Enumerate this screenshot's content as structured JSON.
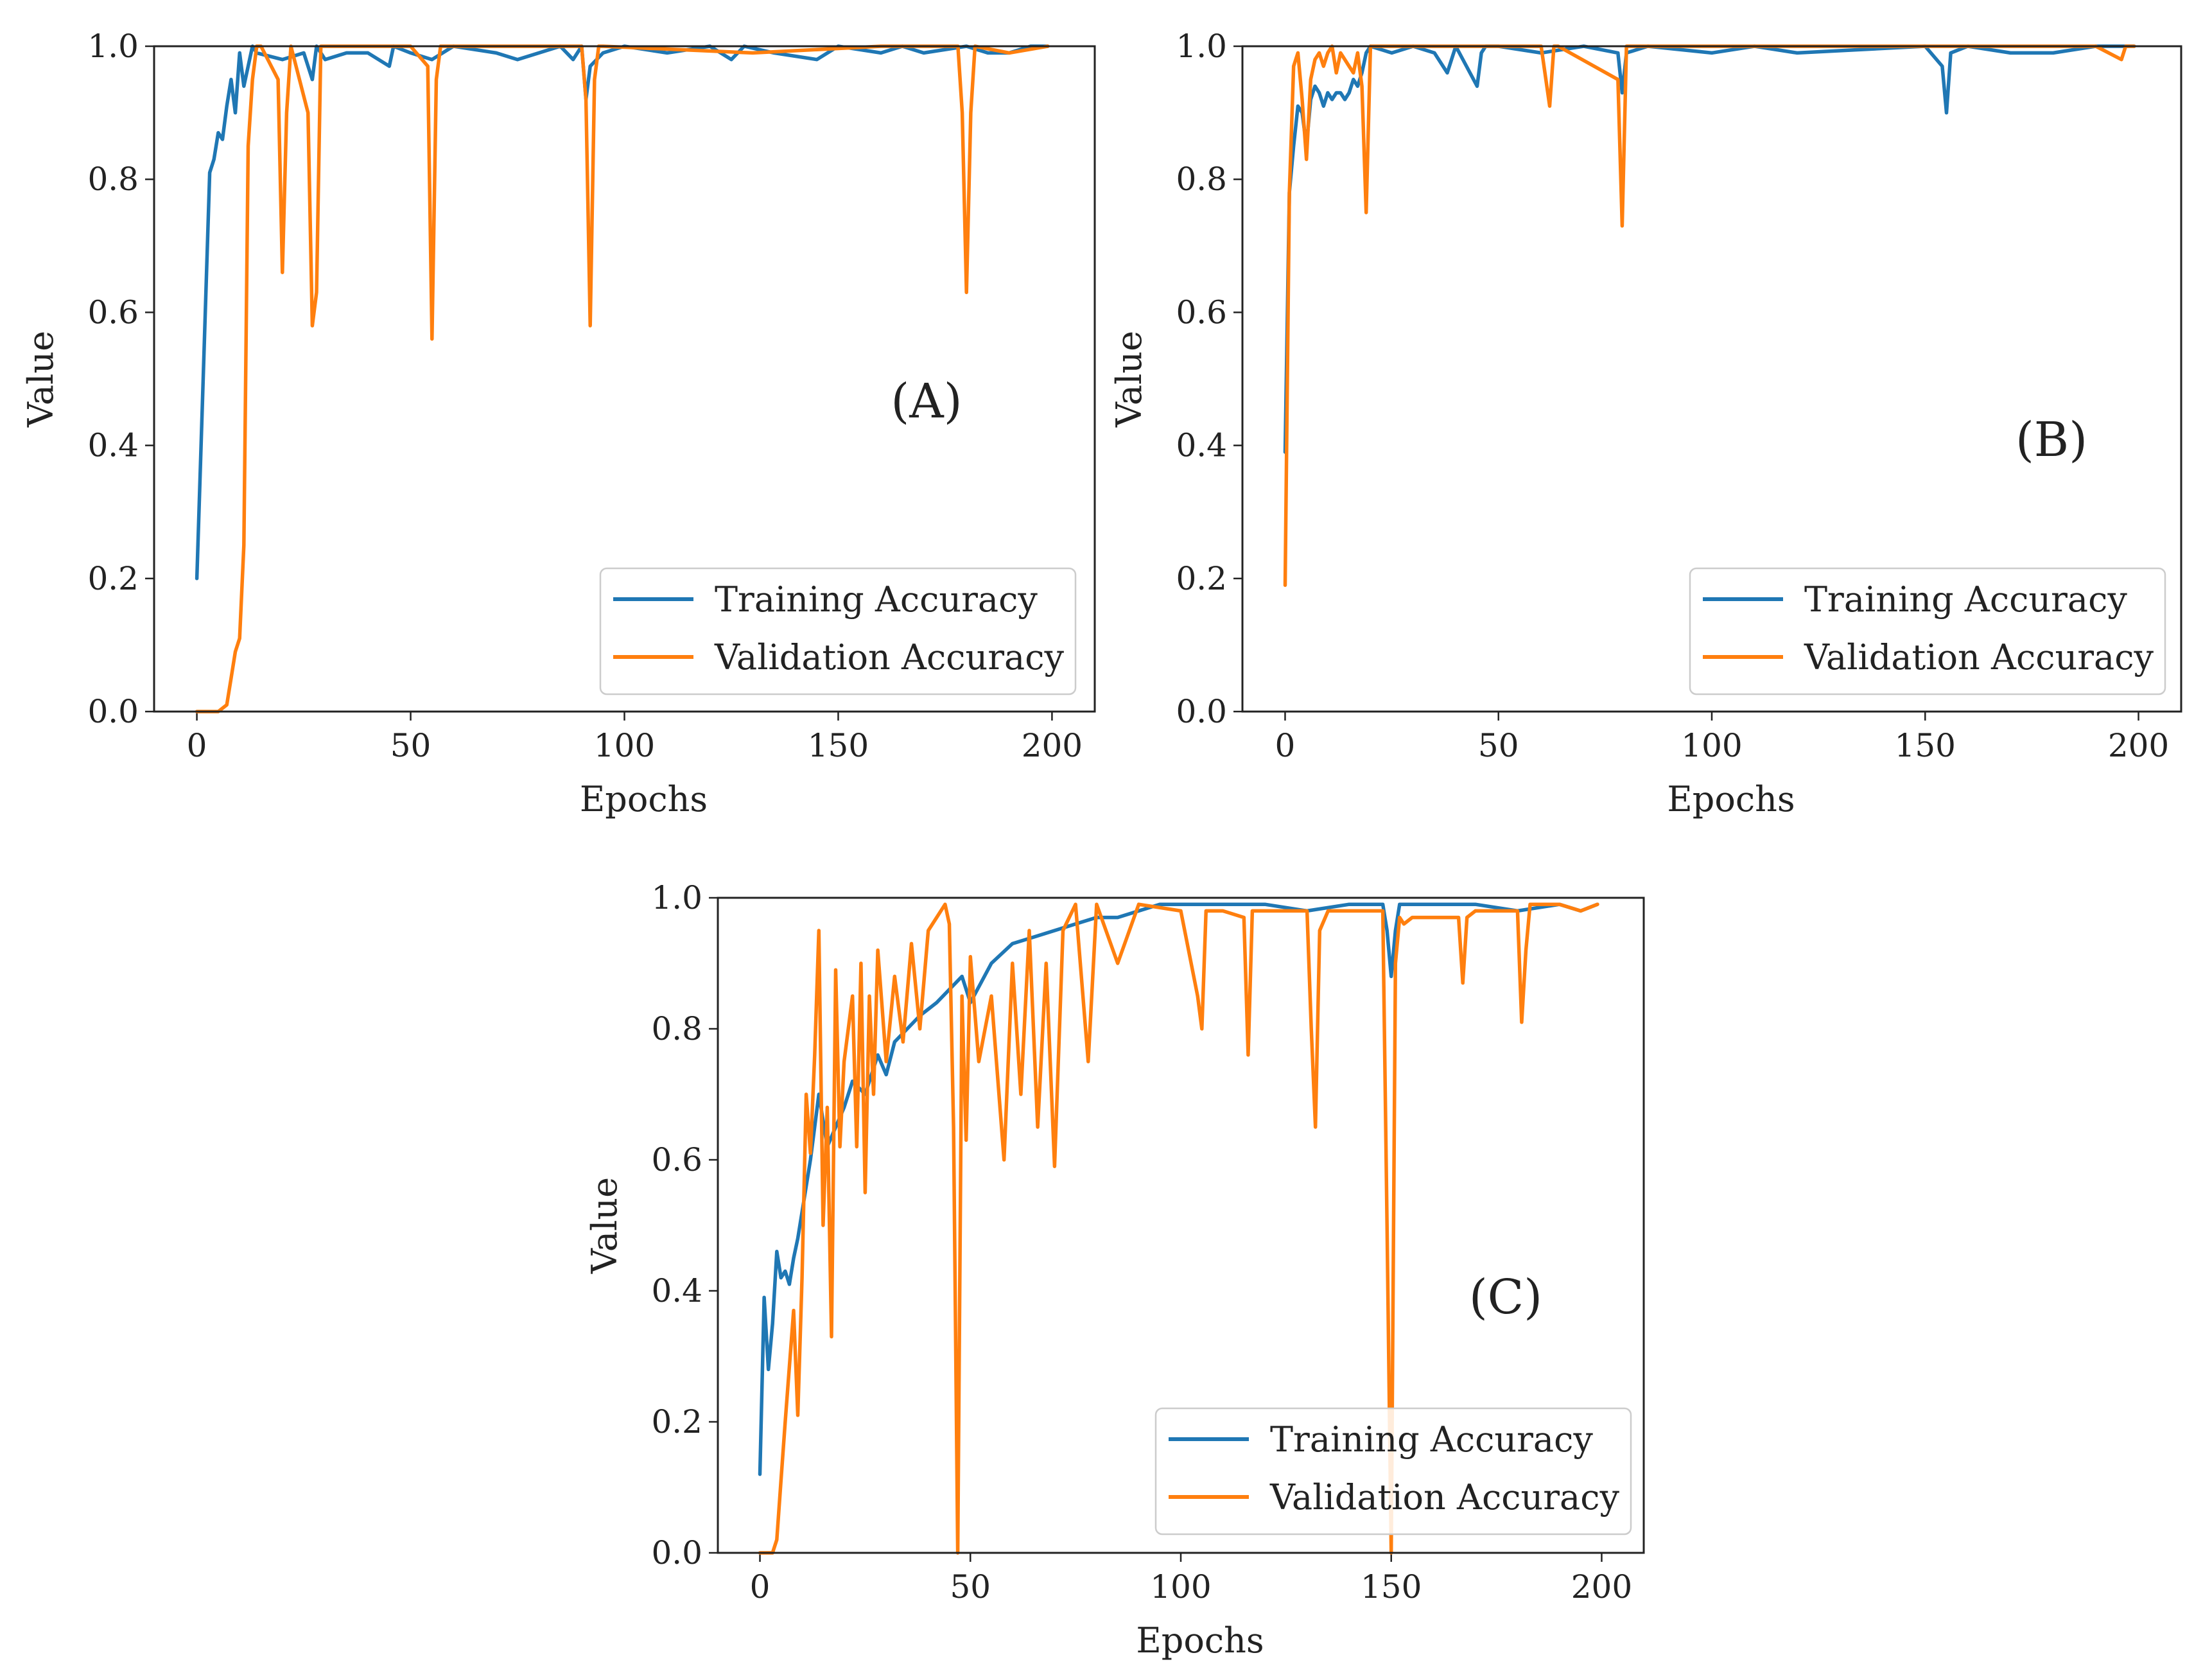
{
  "colors": {
    "training": "#1f77b4",
    "validation": "#ff7f0e",
    "axes": "#222222",
    "legend_border": "#cccccc"
  },
  "chart_data": [
    {
      "type": "line",
      "panel_label": "(A)",
      "xlabel": "Epochs",
      "ylabel": "Value",
      "xlim": [
        -10,
        210
      ],
      "ylim": [
        0.0,
        1.0
      ],
      "x_ticks": [
        0,
        50,
        100,
        150,
        200
      ],
      "y_ticks": [
        0.0,
        0.2,
        0.4,
        0.6,
        0.8,
        1.0
      ],
      "legend_position": "lower-right",
      "series": [
        {
          "name": "Training Accuracy",
          "x": [
            0,
            3,
            4,
            5,
            6,
            7,
            8,
            9,
            10,
            11,
            12,
            13,
            14,
            20,
            25,
            27,
            28,
            30,
            35,
            40,
            45,
            46,
            50,
            55,
            60,
            70,
            75,
            80,
            85,
            88,
            90,
            91,
            92,
            95,
            100,
            110,
            120,
            125,
            128,
            135,
            145,
            150,
            160,
            165,
            170,
            180,
            185,
            190,
            195,
            199
          ],
          "values": [
            0.2,
            0.81,
            0.83,
            0.87,
            0.86,
            0.91,
            0.95,
            0.9,
            0.99,
            0.94,
            0.97,
            1.0,
            0.99,
            0.98,
            0.99,
            0.95,
            1.0,
            0.98,
            0.99,
            0.99,
            0.97,
            1.0,
            0.99,
            0.98,
            1.0,
            0.99,
            0.98,
            0.99,
            1.0,
            0.98,
            1.0,
            0.92,
            0.97,
            0.99,
            1.0,
            0.99,
            1.0,
            0.98,
            1.0,
            0.99,
            0.98,
            1.0,
            0.99,
            1.0,
            0.99,
            1.0,
            0.99,
            0.99,
            1.0,
            1.0
          ]
        },
        {
          "name": "Validation Accuracy",
          "x": [
            0,
            5,
            7,
            8,
            9,
            10,
            11,
            12,
            13,
            14,
            15,
            19,
            20,
            21,
            22,
            26,
            27,
            28,
            29,
            30,
            50,
            54,
            55,
            56,
            57,
            90,
            91,
            92,
            93,
            94,
            95,
            130,
            160,
            178,
            179,
            180,
            181,
            182,
            190,
            199
          ],
          "values": [
            0.0,
            0.0,
            0.01,
            0.05,
            0.09,
            0.11,
            0.25,
            0.85,
            0.95,
            1.0,
            1.0,
            0.95,
            0.66,
            0.9,
            1.0,
            0.9,
            0.58,
            0.63,
            1.0,
            1.0,
            1.0,
            0.97,
            0.56,
            0.95,
            1.0,
            1.0,
            0.92,
            0.58,
            0.95,
            1.0,
            1.0,
            0.99,
            1.0,
            1.0,
            0.9,
            0.63,
            0.9,
            1.0,
            0.99,
            1.0
          ]
        }
      ]
    },
    {
      "type": "line",
      "panel_label": "(B)",
      "xlabel": "Epochs",
      "ylabel": "Value",
      "xlim": [
        -10,
        210
      ],
      "ylim": [
        0.0,
        1.0
      ],
      "x_ticks": [
        0,
        50,
        100,
        150,
        200
      ],
      "y_ticks": [
        0.0,
        0.2,
        0.4,
        0.6,
        0.8,
        1.0
      ],
      "legend_position": "lower-right",
      "series": [
        {
          "name": "Training Accuracy",
          "x": [
            0,
            1,
            2,
            3,
            4,
            5,
            6,
            7,
            8,
            9,
            10,
            11,
            12,
            13,
            14,
            15,
            16,
            17,
            18,
            19,
            20,
            25,
            30,
            35,
            38,
            40,
            45,
            46,
            47,
            50,
            60,
            70,
            78,
            79,
            80,
            85,
            100,
            110,
            120,
            150,
            154,
            155,
            156,
            160,
            170,
            180,
            190,
            199
          ],
          "values": [
            0.39,
            0.78,
            0.85,
            0.91,
            0.9,
            0.85,
            0.92,
            0.94,
            0.93,
            0.91,
            0.93,
            0.92,
            0.93,
            0.93,
            0.92,
            0.93,
            0.95,
            0.94,
            0.96,
            0.99,
            1.0,
            0.99,
            1.0,
            0.99,
            0.96,
            1.0,
            0.94,
            0.99,
            1.0,
            1.0,
            0.99,
            1.0,
            0.99,
            0.93,
            0.99,
            1.0,
            0.99,
            1.0,
            0.99,
            1.0,
            0.97,
            0.9,
            0.99,
            1.0,
            0.99,
            0.99,
            1.0,
            1.0
          ]
        },
        {
          "name": "Validation Accuracy",
          "x": [
            0,
            1,
            2,
            3,
            4,
            5,
            6,
            7,
            8,
            9,
            10,
            11,
            12,
            13,
            14,
            15,
            16,
            17,
            18,
            19,
            20,
            40,
            60,
            62,
            63,
            64,
            78,
            79,
            80,
            100,
            120,
            150,
            190,
            196,
            197,
            199
          ],
          "values": [
            0.19,
            0.78,
            0.97,
            0.99,
            0.92,
            0.83,
            0.95,
            0.98,
            0.99,
            0.97,
            0.99,
            1.0,
            0.96,
            0.99,
            0.98,
            0.97,
            0.96,
            0.99,
            0.94,
            0.75,
            1.0,
            1.0,
            1.0,
            0.91,
            1.0,
            1.0,
            0.95,
            0.73,
            1.0,
            1.0,
            1.0,
            1.0,
            1.0,
            0.98,
            1.0,
            1.0
          ]
        }
      ]
    },
    {
      "type": "line",
      "panel_label": "(C)",
      "xlabel": "Epochs",
      "ylabel": "Value",
      "xlim": [
        -10,
        210
      ],
      "ylim": [
        0.0,
        1.0
      ],
      "x_ticks": [
        0,
        50,
        100,
        150,
        200
      ],
      "y_ticks": [
        0.0,
        0.2,
        0.4,
        0.6,
        0.8,
        1.0
      ],
      "legend_position": "lower-right",
      "series": [
        {
          "name": "Training Accuracy",
          "x": [
            0,
            1,
            2,
            3,
            4,
            5,
            6,
            7,
            8,
            9,
            10,
            12,
            14,
            16,
            18,
            20,
            22,
            25,
            28,
            30,
            32,
            35,
            38,
            40,
            42,
            45,
            48,
            50,
            55,
            60,
            65,
            70,
            75,
            80,
            85,
            90,
            95,
            100,
            110,
            120,
            130,
            140,
            148,
            149,
            150,
            151,
            152,
            155,
            160,
            170,
            180,
            190,
            195,
            199
          ],
          "values": [
            0.12,
            0.39,
            0.28,
            0.35,
            0.46,
            0.42,
            0.43,
            0.41,
            0.45,
            0.48,
            0.52,
            0.6,
            0.7,
            0.62,
            0.65,
            0.68,
            0.72,
            0.7,
            0.76,
            0.73,
            0.78,
            0.8,
            0.82,
            0.83,
            0.84,
            0.86,
            0.88,
            0.84,
            0.9,
            0.93,
            0.94,
            0.95,
            0.96,
            0.97,
            0.97,
            0.98,
            0.99,
            0.99,
            0.99,
            0.99,
            0.98,
            0.99,
            0.99,
            0.95,
            0.88,
            0.95,
            0.99,
            0.99,
            0.99,
            0.99,
            0.98,
            0.99,
            0.98,
            0.99
          ]
        },
        {
          "name": "Validation Accuracy",
          "x": [
            0,
            3,
            4,
            5,
            6,
            8,
            9,
            10,
            11,
            12,
            13,
            14,
            15,
            16,
            17,
            18,
            19,
            20,
            22,
            23,
            24,
            25,
            26,
            27,
            28,
            30,
            32,
            34,
            36,
            38,
            40,
            42,
            44,
            45,
            46,
            47,
            48,
            49,
            50,
            52,
            55,
            58,
            60,
            62,
            64,
            66,
            68,
            70,
            72,
            75,
            78,
            80,
            85,
            90,
            100,
            104,
            105,
            106,
            110,
            115,
            116,
            117,
            120,
            130,
            131,
            132,
            133,
            135,
            140,
            145,
            148,
            149,
            150,
            151,
            152,
            153,
            155,
            160,
            166,
            167,
            168,
            170,
            180,
            181,
            182,
            183,
            185,
            190,
            195,
            199
          ],
          "values": [
            0.0,
            0.0,
            0.02,
            0.11,
            0.2,
            0.37,
            0.21,
            0.42,
            0.7,
            0.61,
            0.76,
            0.95,
            0.5,
            0.68,
            0.33,
            0.89,
            0.62,
            0.75,
            0.85,
            0.62,
            0.9,
            0.55,
            0.85,
            0.7,
            0.92,
            0.75,
            0.88,
            0.78,
            0.93,
            0.8,
            0.95,
            0.97,
            0.99,
            0.96,
            0.65,
            0.0,
            0.85,
            0.63,
            0.91,
            0.75,
            0.85,
            0.6,
            0.9,
            0.7,
            0.95,
            0.65,
            0.9,
            0.59,
            0.95,
            0.99,
            0.75,
            0.99,
            0.9,
            0.99,
            0.98,
            0.85,
            0.8,
            0.98,
            0.98,
            0.97,
            0.76,
            0.98,
            0.98,
            0.98,
            0.8,
            0.65,
            0.95,
            0.98,
            0.98,
            0.98,
            0.98,
            0.5,
            0.0,
            0.9,
            0.97,
            0.96,
            0.97,
            0.97,
            0.97,
            0.87,
            0.97,
            0.98,
            0.98,
            0.81,
            0.92,
            0.99,
            0.99,
            0.99,
            0.98,
            0.99
          ]
        }
      ]
    }
  ]
}
